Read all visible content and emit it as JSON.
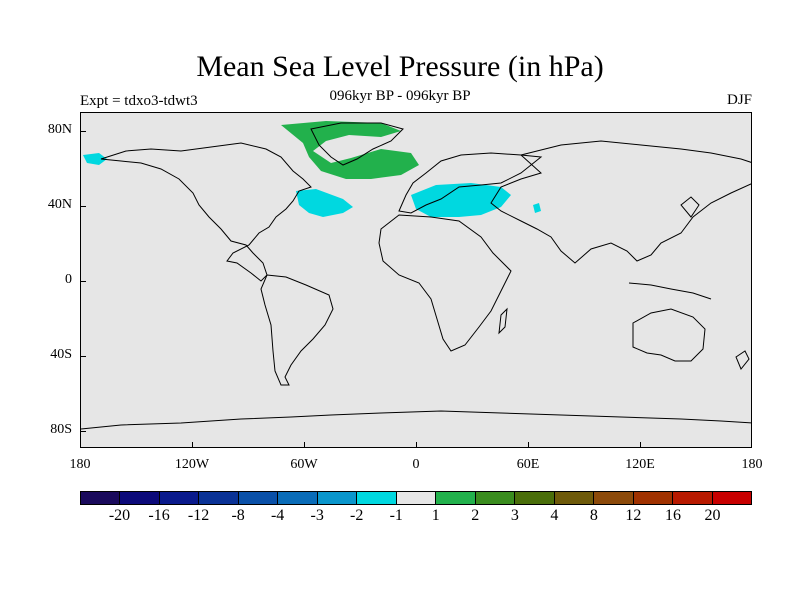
{
  "header": {
    "title": "Mean Sea Level Pressure (in hPa)",
    "subtitle": "096kyr BP - 096kyr BP",
    "left_label": "Expt = tdxo3-tdwt3",
    "right_label": "DJF"
  },
  "map": {
    "lat_labels": [
      "80N",
      "40N",
      "0",
      "40S",
      "80S"
    ],
    "lon_labels": [
      "180",
      "120W",
      "60W",
      "0",
      "60E",
      "120E",
      "180"
    ],
    "background_color": "#e6e6e6",
    "anomaly_regions": [
      {
        "name": "greenland-positive",
        "value_class": "1 to 2",
        "color": "#22b14c"
      },
      {
        "name": "north-atlantic-negative",
        "value_class": "-2 to -1",
        "color": "#00d8e0"
      },
      {
        "name": "mediterranean-negative",
        "value_class": "-2 to -1",
        "color": "#00d8e0"
      },
      {
        "name": "alaska-negative",
        "value_class": "-2 to -1",
        "color": "#00d8e0"
      }
    ]
  },
  "colorbar": {
    "colors": [
      "#1a0a5c",
      "#0c0a7a",
      "#0a1a8c",
      "#0a3296",
      "#0a50a8",
      "#0a6cb8",
      "#0a96cc",
      "#00d8e0",
      "#e6e6e6",
      "#22b14c",
      "#3a8c1e",
      "#4a6e0a",
      "#6e5a0a",
      "#8c4a0a",
      "#a03200",
      "#b81a00",
      "#c80000"
    ],
    "labels": [
      "-20",
      "-16",
      "-12",
      "-8",
      "-4",
      "-3",
      "-2",
      "-1",
      "1",
      "2",
      "3",
      "4",
      "8",
      "12",
      "16",
      "20"
    ]
  }
}
